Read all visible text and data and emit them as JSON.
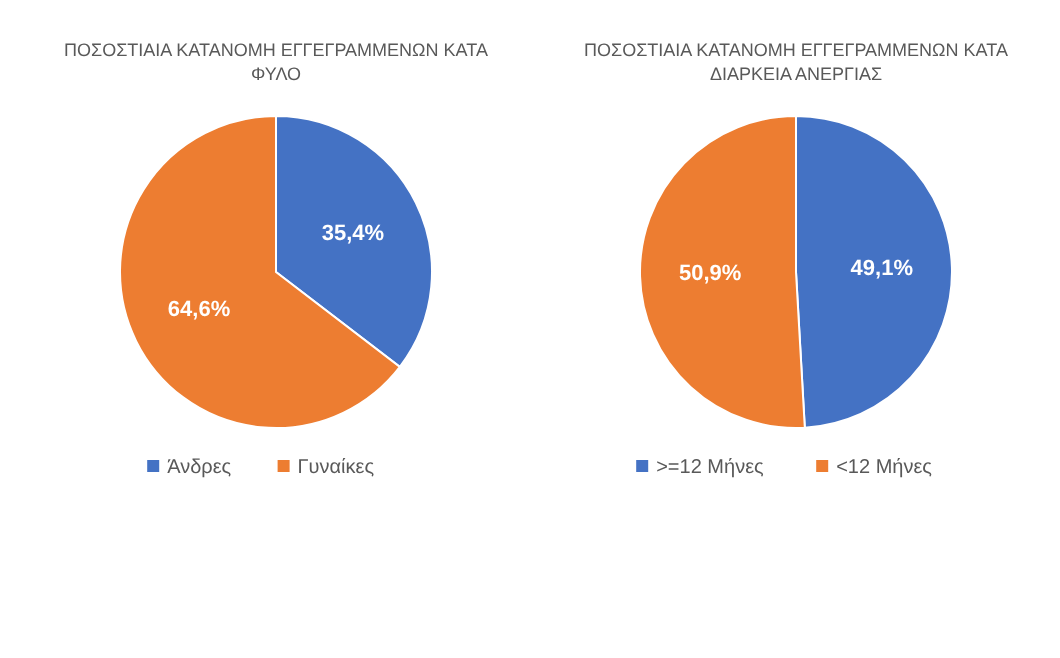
{
  "chart_data": [
    {
      "type": "pie",
      "title": "ΠΟΣΟΣΤΙΑΙΑ ΚΑΤΑΝΟΜΗ ΕΓΓΕΓΡΑΜΜΕΝΩΝ ΚΑΤΑ\nΦΥΛΟ",
      "categories": [
        "Άνδρες",
        "Γυναίκες"
      ],
      "values": [
        35.4,
        64.6
      ],
      "colors": [
        "#4472c4",
        "#ed7d31"
      ],
      "value_labels": [
        "35,4%",
        "64,6%"
      ],
      "legend": "bottom"
    },
    {
      "type": "pie",
      "title": "ΠΟΣΟΣΤΙΑΙΑ ΚΑΤΑΝΟΜΗ ΕΓΓΕΓΡΑΜΜΕΝΩΝ ΚΑΤΑ\nΔΙΑΡΚΕΙΑ ΑΝΕΡΓΙΑΣ",
      "categories": [
        ">=12 Μήνες",
        "<12 Μήνες"
      ],
      "values": [
        49.1,
        50.9
      ],
      "colors": [
        "#4472c4",
        "#ed7d31"
      ],
      "value_labels": [
        "49,1%",
        "50,9%"
      ],
      "legend": "bottom"
    }
  ]
}
